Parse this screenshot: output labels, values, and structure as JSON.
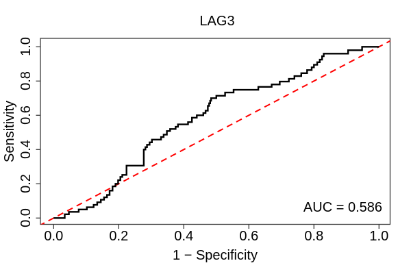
{
  "figure": {
    "title": "LAG3",
    "x_axis": {
      "label": "1 − Specificity",
      "tick_labels": [
        "0.0",
        "0.2",
        "0.4",
        "0.6",
        "0.8",
        "1.0"
      ],
      "tick_values": [
        0,
        0.2,
        0.4,
        0.6,
        0.8,
        1.0
      ]
    },
    "y_axis": {
      "label": "Sensitivity",
      "tick_labels": [
        "0.0",
        "0.2",
        "0.4",
        "0.6",
        "0.8",
        "1.0"
      ],
      "tick_values": [
        0,
        0.2,
        0.4,
        0.6,
        0.8,
        1.0
      ]
    },
    "annotation": {
      "auc_label": "AUC = 0.586"
    }
  },
  "colors": {
    "roc_curve": "#000000",
    "reference_line": "#ff0000",
    "frame": "#3a3a3a",
    "text": "#000000",
    "background": "#ffffff"
  },
  "chart_data": {
    "type": "line",
    "title": "LAG3",
    "xlabel": "1 − Specificity",
    "ylabel": "Sensitivity",
    "xlim": [
      0,
      1
    ],
    "ylim": [
      0,
      1
    ],
    "grid": false,
    "auc": 0.586,
    "series": [
      {
        "name": "ROC curve (LAG3)",
        "style": "step",
        "color": "#000000",
        "points": [
          [
            0.0,
            0.0
          ],
          [
            0.034,
            0.022
          ],
          [
            0.047,
            0.036
          ],
          [
            0.077,
            0.05
          ],
          [
            0.102,
            0.063
          ],
          [
            0.123,
            0.077
          ],
          [
            0.134,
            0.092
          ],
          [
            0.145,
            0.107
          ],
          [
            0.155,
            0.121
          ],
          [
            0.164,
            0.135
          ],
          [
            0.172,
            0.16
          ],
          [
            0.181,
            0.185
          ],
          [
            0.19,
            0.2
          ],
          [
            0.198,
            0.221
          ],
          [
            0.205,
            0.24
          ],
          [
            0.211,
            0.252
          ],
          [
            0.224,
            0.306
          ],
          [
            0.277,
            0.4
          ],
          [
            0.282,
            0.414
          ],
          [
            0.287,
            0.428
          ],
          [
            0.295,
            0.442
          ],
          [
            0.302,
            0.458
          ],
          [
            0.33,
            0.473
          ],
          [
            0.338,
            0.487
          ],
          [
            0.348,
            0.508
          ],
          [
            0.358,
            0.52
          ],
          [
            0.375,
            0.533
          ],
          [
            0.382,
            0.547
          ],
          [
            0.413,
            0.56
          ],
          [
            0.425,
            0.586
          ],
          [
            0.44,
            0.6
          ],
          [
            0.46,
            0.613
          ],
          [
            0.467,
            0.627
          ],
          [
            0.474,
            0.655
          ],
          [
            0.478,
            0.67
          ],
          [
            0.481,
            0.685
          ],
          [
            0.484,
            0.7
          ],
          [
            0.5,
            0.714
          ],
          [
            0.527,
            0.733
          ],
          [
            0.553,
            0.749
          ],
          [
            0.629,
            0.766
          ],
          [
            0.67,
            0.78
          ],
          [
            0.695,
            0.797
          ],
          [
            0.723,
            0.813
          ],
          [
            0.74,
            0.829
          ],
          [
            0.761,
            0.846
          ],
          [
            0.779,
            0.864
          ],
          [
            0.793,
            0.88
          ],
          [
            0.8,
            0.895
          ],
          [
            0.81,
            0.91
          ],
          [
            0.818,
            0.925
          ],
          [
            0.825,
            0.945
          ],
          [
            0.83,
            0.96
          ],
          [
            0.905,
            0.98
          ],
          [
            0.948,
            1.0
          ],
          [
            1.0,
            1.0
          ]
        ]
      },
      {
        "name": "Chance reference line",
        "style": "dashed",
        "color": "#ff0000",
        "points": [
          [
            0,
            0
          ],
          [
            1,
            1
          ]
        ]
      }
    ]
  }
}
